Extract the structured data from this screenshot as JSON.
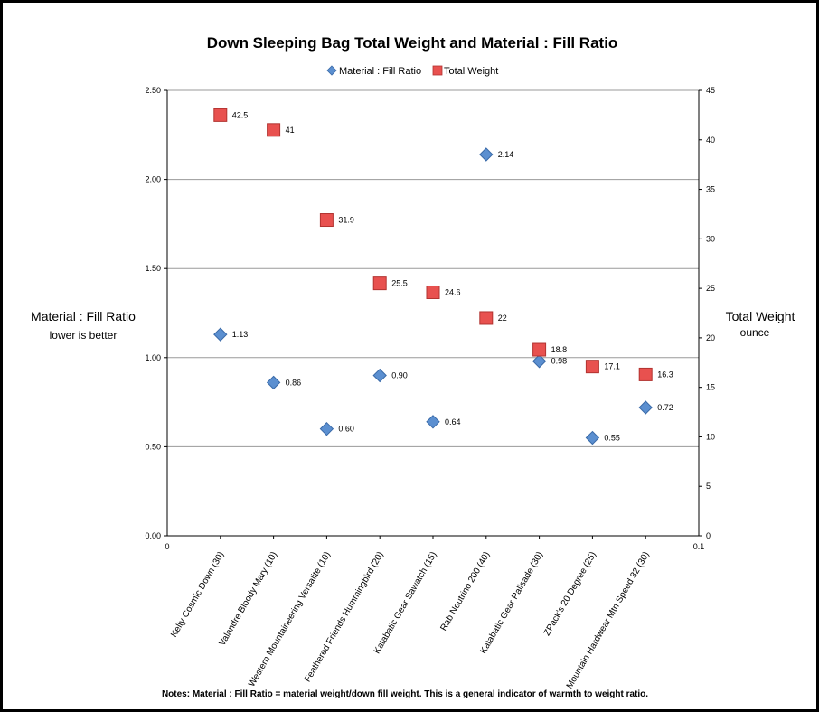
{
  "chart_data": {
    "type": "scatter",
    "title": "Down Sleeping Bag Total Weight and Material : Fill Ratio",
    "legend": {
      "placement": "top",
      "entries": [
        "Material : Fill Ratio",
        "Total Weight"
      ]
    },
    "categories": [
      "Kelty Cosmic Down (30)",
      "Valandre Bloody Mary (10)",
      "Western Mountaineering Versalite (10)",
      "Feathered Friends Hummingbird (20)",
      "Katabatic Gear Sawatch (15)",
      "Rab Neutrino 200 (40)",
      "Katabatic Gear Palisade (30)",
      "ZPack's 20 Degree (25)",
      "Mountain Hardwear Mtn Speed 32 (30)"
    ],
    "series": [
      {
        "name": "Material : Fill Ratio",
        "axis": "left",
        "marker": "diamond",
        "color": "#5b8fd0",
        "values": [
          1.13,
          0.86,
          0.6,
          0.9,
          0.64,
          2.14,
          0.98,
          0.55,
          0.72
        ],
        "labels": [
          "1.13",
          "0.86",
          "0.60",
          "0.90",
          "0.64",
          "2.14",
          "0.98",
          "0.55",
          "0.72"
        ]
      },
      {
        "name": "Total Weight",
        "axis": "right",
        "marker": "square",
        "color": "#e8514f",
        "values": [
          42.5,
          41,
          31.9,
          25.5,
          24.6,
          22,
          18.8,
          17.1,
          16.3
        ],
        "labels": [
          "42.5",
          "41",
          "31.9",
          "25.5",
          "24.6",
          "22",
          "18.8",
          "17.1",
          "16.3"
        ]
      }
    ],
    "ylabel": "Material : Fill Ratio",
    "ylabel_sub": "lower is better",
    "ylim": [
      0,
      2.5
    ],
    "yticks": [
      "0.00",
      "0.50",
      "1.00",
      "1.50",
      "2.00",
      "2.50"
    ],
    "y2label": "Total Weight",
    "y2label_sub": "ounce",
    "y2lim": [
      0,
      45
    ],
    "y2ticks": [
      "0",
      "5",
      "10",
      "15",
      "20",
      "25",
      "30",
      "35",
      "40",
      "45"
    ],
    "xlim": [
      0,
      0.1
    ],
    "xticks": [
      "0",
      "0.1"
    ],
    "grid": "horizontal",
    "note": "Notes: Material : Fill Ratio = material weight/down fill weight. This is a general indicator of warmth to weight ratio."
  }
}
